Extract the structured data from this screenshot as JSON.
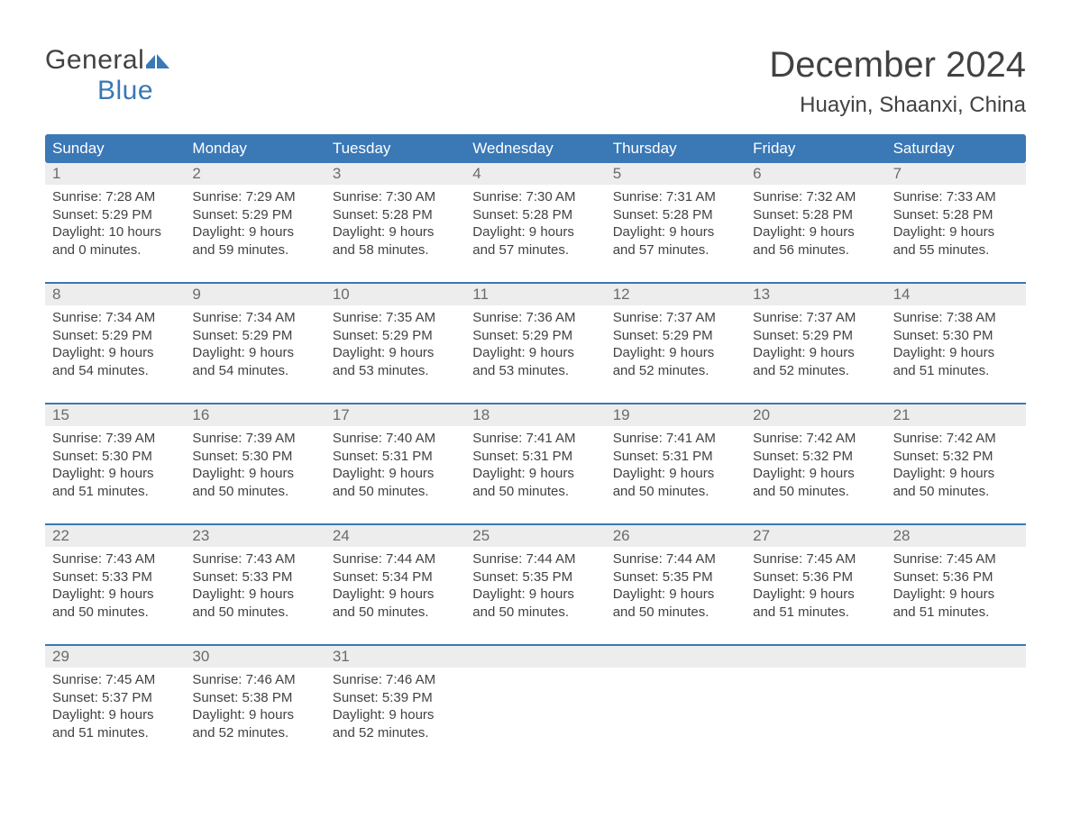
{
  "logo": {
    "text1": "General",
    "text2": "Blue"
  },
  "title": "December 2024",
  "location": "Huayin, Shaanxi, China",
  "colors": {
    "header_bg": "#3a78b6",
    "header_text": "#ffffff",
    "date_row_bg": "#ededed",
    "body_text": "#424242",
    "rule": "#3a78b6",
    "page_bg": "#ffffff"
  },
  "day_names": [
    "Sunday",
    "Monday",
    "Tuesday",
    "Wednesday",
    "Thursday",
    "Friday",
    "Saturday"
  ],
  "weeks": [
    {
      "dates": [
        "1",
        "2",
        "3",
        "4",
        "5",
        "6",
        "7"
      ],
      "cells": [
        [
          "Sunrise: 7:28 AM",
          "Sunset: 5:29 PM",
          "Daylight: 10 hours",
          "and 0 minutes."
        ],
        [
          "Sunrise: 7:29 AM",
          "Sunset: 5:29 PM",
          "Daylight: 9 hours",
          "and 59 minutes."
        ],
        [
          "Sunrise: 7:30 AM",
          "Sunset: 5:28 PM",
          "Daylight: 9 hours",
          "and 58 minutes."
        ],
        [
          "Sunrise: 7:30 AM",
          "Sunset: 5:28 PM",
          "Daylight: 9 hours",
          "and 57 minutes."
        ],
        [
          "Sunrise: 7:31 AM",
          "Sunset: 5:28 PM",
          "Daylight: 9 hours",
          "and 57 minutes."
        ],
        [
          "Sunrise: 7:32 AM",
          "Sunset: 5:28 PM",
          "Daylight: 9 hours",
          "and 56 minutes."
        ],
        [
          "Sunrise: 7:33 AM",
          "Sunset: 5:28 PM",
          "Daylight: 9 hours",
          "and 55 minutes."
        ]
      ]
    },
    {
      "dates": [
        "8",
        "9",
        "10",
        "11",
        "12",
        "13",
        "14"
      ],
      "cells": [
        [
          "Sunrise: 7:34 AM",
          "Sunset: 5:29 PM",
          "Daylight: 9 hours",
          "and 54 minutes."
        ],
        [
          "Sunrise: 7:34 AM",
          "Sunset: 5:29 PM",
          "Daylight: 9 hours",
          "and 54 minutes."
        ],
        [
          "Sunrise: 7:35 AM",
          "Sunset: 5:29 PM",
          "Daylight: 9 hours",
          "and 53 minutes."
        ],
        [
          "Sunrise: 7:36 AM",
          "Sunset: 5:29 PM",
          "Daylight: 9 hours",
          "and 53 minutes."
        ],
        [
          "Sunrise: 7:37 AM",
          "Sunset: 5:29 PM",
          "Daylight: 9 hours",
          "and 52 minutes."
        ],
        [
          "Sunrise: 7:37 AM",
          "Sunset: 5:29 PM",
          "Daylight: 9 hours",
          "and 52 minutes."
        ],
        [
          "Sunrise: 7:38 AM",
          "Sunset: 5:30 PM",
          "Daylight: 9 hours",
          "and 51 minutes."
        ]
      ]
    },
    {
      "dates": [
        "15",
        "16",
        "17",
        "18",
        "19",
        "20",
        "21"
      ],
      "cells": [
        [
          "Sunrise: 7:39 AM",
          "Sunset: 5:30 PM",
          "Daylight: 9 hours",
          "and 51 minutes."
        ],
        [
          "Sunrise: 7:39 AM",
          "Sunset: 5:30 PM",
          "Daylight: 9 hours",
          "and 50 minutes."
        ],
        [
          "Sunrise: 7:40 AM",
          "Sunset: 5:31 PM",
          "Daylight: 9 hours",
          "and 50 minutes."
        ],
        [
          "Sunrise: 7:41 AM",
          "Sunset: 5:31 PM",
          "Daylight: 9 hours",
          "and 50 minutes."
        ],
        [
          "Sunrise: 7:41 AM",
          "Sunset: 5:31 PM",
          "Daylight: 9 hours",
          "and 50 minutes."
        ],
        [
          "Sunrise: 7:42 AM",
          "Sunset: 5:32 PM",
          "Daylight: 9 hours",
          "and 50 minutes."
        ],
        [
          "Sunrise: 7:42 AM",
          "Sunset: 5:32 PM",
          "Daylight: 9 hours",
          "and 50 minutes."
        ]
      ]
    },
    {
      "dates": [
        "22",
        "23",
        "24",
        "25",
        "26",
        "27",
        "28"
      ],
      "cells": [
        [
          "Sunrise: 7:43 AM",
          "Sunset: 5:33 PM",
          "Daylight: 9 hours",
          "and 50 minutes."
        ],
        [
          "Sunrise: 7:43 AM",
          "Sunset: 5:33 PM",
          "Daylight: 9 hours",
          "and 50 minutes."
        ],
        [
          "Sunrise: 7:44 AM",
          "Sunset: 5:34 PM",
          "Daylight: 9 hours",
          "and 50 minutes."
        ],
        [
          "Sunrise: 7:44 AM",
          "Sunset: 5:35 PM",
          "Daylight: 9 hours",
          "and 50 minutes."
        ],
        [
          "Sunrise: 7:44 AM",
          "Sunset: 5:35 PM",
          "Daylight: 9 hours",
          "and 50 minutes."
        ],
        [
          "Sunrise: 7:45 AM",
          "Sunset: 5:36 PM",
          "Daylight: 9 hours",
          "and 51 minutes."
        ],
        [
          "Sunrise: 7:45 AM",
          "Sunset: 5:36 PM",
          "Daylight: 9 hours",
          "and 51 minutes."
        ]
      ]
    },
    {
      "dates": [
        "29",
        "30",
        "31",
        "",
        "",
        "",
        ""
      ],
      "cells": [
        [
          "Sunrise: 7:45 AM",
          "Sunset: 5:37 PM",
          "Daylight: 9 hours",
          "and 51 minutes."
        ],
        [
          "Sunrise: 7:46 AM",
          "Sunset: 5:38 PM",
          "Daylight: 9 hours",
          "and 52 minutes."
        ],
        [
          "Sunrise: 7:46 AM",
          "Sunset: 5:39 PM",
          "Daylight: 9 hours",
          "and 52 minutes."
        ],
        [],
        [],
        [],
        []
      ]
    }
  ]
}
